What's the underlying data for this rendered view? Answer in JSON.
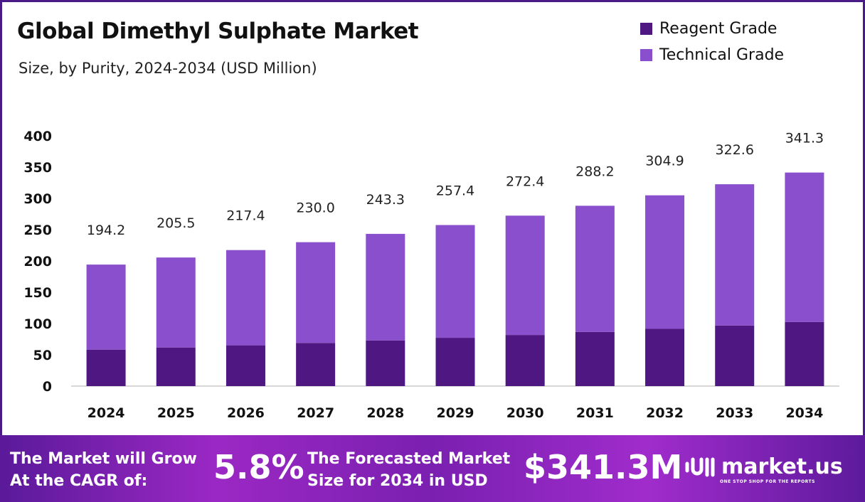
{
  "chart_data": {
    "type": "bar",
    "stacked": true,
    "title": "Global Dimethyl Sulphate Market",
    "subtitle": "Size, by Purity, 2024-2034 (USD Million)",
    "categories": [
      "2024",
      "2025",
      "2026",
      "2027",
      "2028",
      "2029",
      "2030",
      "2031",
      "2032",
      "2033",
      "2034"
    ],
    "series": [
      {
        "name": "Reagent Grade",
        "color": "#4e1782",
        "values": [
          58.3,
          61.7,
          65.2,
          69.0,
          73.0,
          77.2,
          81.7,
          86.5,
          91.5,
          96.8,
          102.4
        ]
      },
      {
        "name": "Technical Grade",
        "color": "#8a4fcc",
        "values": [
          135.9,
          143.8,
          152.2,
          161.0,
          170.3,
          180.2,
          190.7,
          201.7,
          213.4,
          225.8,
          238.9
        ]
      }
    ],
    "totals": [
      "194.2",
      "205.5",
      "217.4",
      "230.0",
      "243.3",
      "257.4",
      "272.4",
      "288.2",
      "304.9",
      "322.6",
      "341.3"
    ],
    "ylim": [
      0,
      400
    ],
    "yticks": [
      "0",
      "50",
      "100",
      "150",
      "200",
      "250",
      "300",
      "350",
      "400"
    ],
    "grid": false,
    "legend": "top-right"
  },
  "banner": {
    "cagr_label_1": "The Market will Grow",
    "cagr_label_2": "At the CAGR of:",
    "cagr_value": "5.8%",
    "forecast_label_1": "The Forecasted Market",
    "forecast_label_2": "Size for 2034 in USD",
    "forecast_value": "$341.3M",
    "logo_name": "market.us",
    "logo_tagline": "ONE STOP SHOP FOR THE REPORTS"
  }
}
